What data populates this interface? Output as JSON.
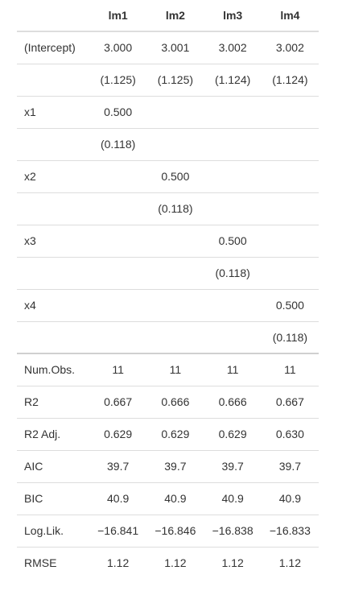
{
  "header": [
    "",
    "lm1",
    "lm2",
    "lm3",
    "lm4"
  ],
  "rows": [
    {
      "label": "(Intercept)",
      "cells": [
        "3.000",
        "3.001",
        "3.002",
        "3.002"
      ]
    },
    {
      "label": "",
      "cells": [
        "(1.125)",
        "(1.125)",
        "(1.124)",
        "(1.124)"
      ]
    },
    {
      "label": "x1",
      "cells": [
        "0.500",
        "",
        "",
        ""
      ]
    },
    {
      "label": "",
      "cells": [
        "(0.118)",
        "",
        "",
        ""
      ]
    },
    {
      "label": "x2",
      "cells": [
        "",
        "0.500",
        "",
        ""
      ]
    },
    {
      "label": "",
      "cells": [
        "",
        "(0.118)",
        "",
        ""
      ]
    },
    {
      "label": "x3",
      "cells": [
        "",
        "",
        "0.500",
        ""
      ]
    },
    {
      "label": "",
      "cells": [
        "",
        "",
        "(0.118)",
        ""
      ]
    },
    {
      "label": "x4",
      "cells": [
        "",
        "",
        "",
        "0.500"
      ]
    },
    {
      "label": "",
      "cells": [
        "",
        "",
        "",
        "(0.118)"
      ]
    },
    {
      "label": "Num.Obs.",
      "cells": [
        "11",
        "11",
        "11",
        "11"
      ]
    },
    {
      "label": "R2",
      "cells": [
        "0.667",
        "0.666",
        "0.666",
        "0.667"
      ]
    },
    {
      "label": "R2 Adj.",
      "cells": [
        "0.629",
        "0.629",
        "0.629",
        "0.630"
      ]
    },
    {
      "label": "AIC",
      "cells": [
        "39.7",
        "39.7",
        "39.7",
        "39.7"
      ]
    },
    {
      "label": "BIC",
      "cells": [
        "40.9",
        "40.9",
        "40.9",
        "40.9"
      ]
    },
    {
      "label": "Log.Lik.",
      "cells": [
        "−16.841",
        "−16.846",
        "−16.838",
        "−16.833"
      ]
    },
    {
      "label": "RMSE",
      "cells": [
        "1.12",
        "1.12",
        "1.12",
        "1.12"
      ]
    }
  ]
}
